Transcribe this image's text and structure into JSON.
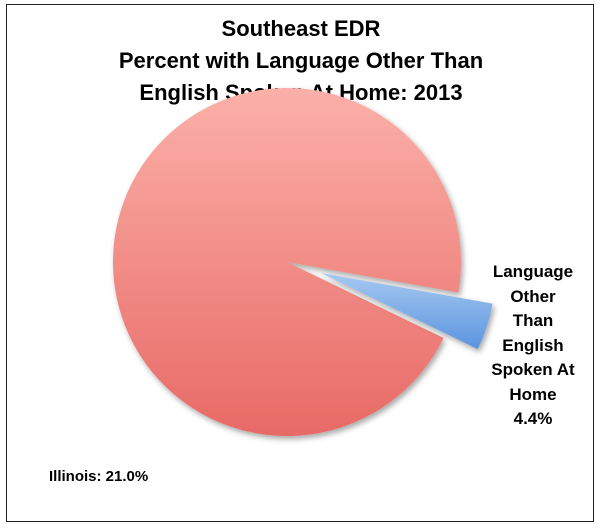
{
  "chart_data": {
    "type": "pie",
    "title_lines": [
      "Southeast EDR",
      "Percent with Language Other Than",
      "English Spoken At Home: 2013"
    ],
    "slices": [
      {
        "label": "",
        "value": 95.6,
        "color": "#e86a66",
        "color_light": "#fbb0a9",
        "exploded": false
      },
      {
        "label": "Language Other Than English Spoken At Home",
        "value": 4.4,
        "color": "#5a94df",
        "color_light": "#a6c8f1",
        "exploded": true
      }
    ],
    "slice_label_lines": [
      "Language",
      "Other",
      "Than",
      "English",
      "Spoken At",
      "Home",
      "4.4%"
    ],
    "footnote": "Illinois: 21.0%"
  }
}
